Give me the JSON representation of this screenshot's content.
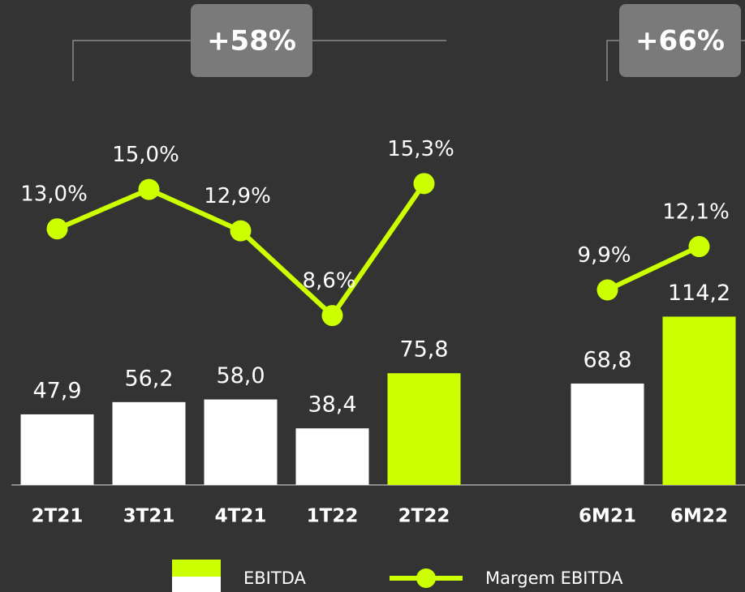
{
  "chart_data": {
    "type": "combo",
    "categories": [
      "2T21",
      "3T21",
      "4T21",
      "1T22",
      "2T22",
      null,
      "6M21",
      "6M22"
    ],
    "series": [
      {
        "name": "EBITDA",
        "kind": "bar",
        "colors": [
          "#ffffff",
          "#ffffff",
          "#ffffff",
          "#ffffff",
          "#ccff00",
          null,
          "#ffffff",
          "#ccff00"
        ],
        "values": [
          47.9,
          56.2,
          58.0,
          38.4,
          75.8,
          null,
          68.8,
          114.2
        ],
        "value_labels": [
          "47,9",
          "56,2",
          "58,0",
          "38,4",
          "75,8",
          null,
          "68,8",
          "114,2"
        ]
      },
      {
        "name": "Margem EBITDA",
        "kind": "line",
        "axis": "y2",
        "color": "#ccff00",
        "values": [
          13.0,
          15.0,
          12.9,
          8.6,
          15.3,
          null,
          9.9,
          12.1
        ],
        "value_labels": [
          "13,0%",
          "15,0%",
          "12,9%",
          "8,6%",
          "15,3%",
          null,
          "9,9%",
          "12,1%"
        ]
      }
    ],
    "ylim": [
      0,
      274
    ],
    "y2lim": [
      0,
      20.5
    ],
    "annotations": [
      "+58%",
      "+66%"
    ]
  }
}
